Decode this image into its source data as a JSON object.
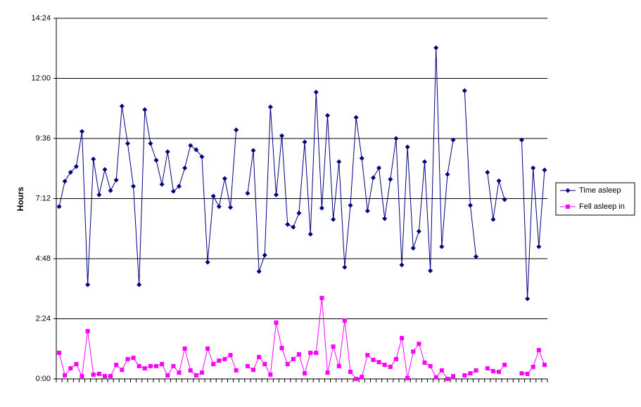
{
  "chart_data": {
    "type": "line",
    "ylabel": "Hours",
    "categories": [
      null,
      null,
      null,
      null,
      null,
      null,
      null,
      null,
      null,
      null,
      null,
      null,
      null,
      null,
      null,
      null,
      null,
      null,
      null,
      null,
      null,
      null,
      null,
      null,
      null,
      null,
      null,
      null,
      null,
      null,
      null,
      null,
      null,
      null,
      null,
      null,
      null,
      null,
      null,
      null,
      null,
      null,
      null,
      null,
      null,
      null,
      null,
      null,
      null,
      null,
      null,
      null,
      null,
      null,
      null,
      null,
      null,
      null,
      null,
      null,
      null,
      null,
      null,
      null,
      null,
      null,
      null,
      null,
      null,
      null,
      null,
      null,
      null,
      null,
      null,
      null,
      null,
      null,
      null,
      null,
      null,
      null,
      null,
      null,
      null,
      null
    ],
    "series": [
      {
        "name": "Time asleep",
        "color": "#000080",
        "marker": "diamond",
        "values": [
          6.88,
          7.89,
          8.25,
          8.48,
          9.88,
          3.76,
          8.78,
          7.35,
          8.36,
          7.52,
          7.94,
          10.89,
          9.4,
          7.69,
          3.76,
          10.75,
          9.4,
          8.73,
          7.77,
          9.07,
          7.49,
          7.69,
          8.42,
          9.32,
          9.15,
          8.87,
          4.66,
          7.3,
          6.88,
          8.0,
          6.85,
          9.94,
          null,
          7.41,
          9.12,
          4.29,
          4.94,
          10.86,
          7.35,
          9.71,
          6.17,
          6.06,
          6.62,
          9.46,
          5.78,
          11.45,
          6.82,
          10.52,
          6.37,
          8.67,
          4.46,
          6.93,
          10.44,
          8.81,
          6.71,
          8.03,
          8.42,
          6.4,
          7.97,
          9.6,
          4.55,
          9.26,
          5.22,
          5.89,
          8.67,
          4.32,
          13.22,
          5.28,
          8.17,
          9.54,
          null,
          11.51,
          6.93,
          4.88,
          null,
          8.25,
          6.37,
          7.91,
          7.16,
          null,
          null,
          9.54,
          3.2,
          8.42,
          5.28,
          8.34
        ]
      },
      {
        "name": "Fell asleep in",
        "color": "#ff00ff",
        "marker": "square",
        "values": [
          1.04,
          0.14,
          0.42,
          0.59,
          0.11,
          1.91,
          0.17,
          0.2,
          0.11,
          0.11,
          0.56,
          0.36,
          0.79,
          0.84,
          0.51,
          0.42,
          0.51,
          0.51,
          0.59,
          0.14,
          0.51,
          0.25,
          1.21,
          0.34,
          0.14,
          0.25,
          1.21,
          0.59,
          0.73,
          0.79,
          0.95,
          0.34,
          null,
          0.51,
          0.36,
          0.87,
          0.59,
          0.17,
          2.25,
          1.23,
          0.59,
          0.79,
          0.98,
          0.22,
          1.04,
          1.04,
          3.23,
          0.25,
          1.29,
          0.51,
          2.33,
          0.28,
          0,
          0.08,
          0.95,
          0.76,
          0.67,
          0.56,
          0.48,
          0.79,
          1.63,
          0.03,
          1.09,
          1.4,
          0.65,
          0.51,
          0.06,
          0.34,
          0,
          0.11,
          null,
          0.14,
          0.22,
          0.34,
          null,
          0.42,
          0.31,
          0.28,
          0.56,
          null,
          null,
          0.22,
          0.2,
          0.48,
          1.15,
          0.56
        ]
      }
    ],
    "ylim": [
      0,
      14.4
    ],
    "yticks": [
      {
        "value": 0,
        "label": "0:00"
      },
      {
        "value": 2.4,
        "label": "2:24"
      },
      {
        "value": 4.8,
        "label": "4:48"
      },
      {
        "value": 7.2,
        "label": "7:12"
      },
      {
        "value": 9.6,
        "label": "9:36"
      },
      {
        "value": 12,
        "label": "12:00"
      },
      {
        "value": 14.4,
        "label": "14:24"
      }
    ],
    "grid": true,
    "legend": "right"
  }
}
